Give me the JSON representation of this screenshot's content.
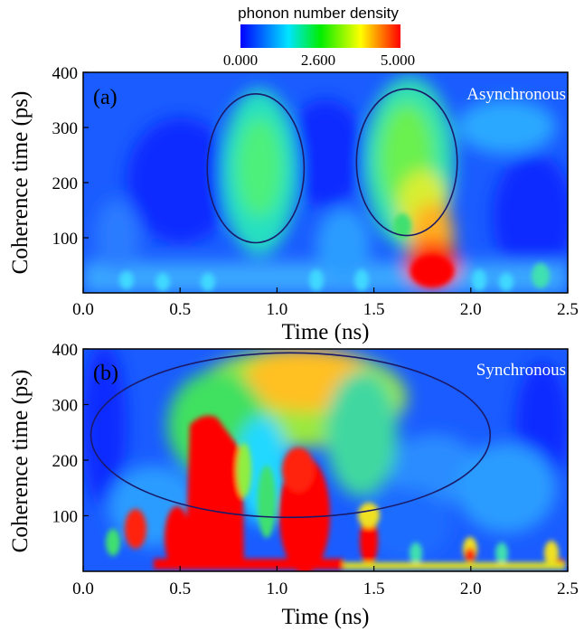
{
  "colorbar": {
    "title": "phonon number density",
    "ticks": [
      "0.000",
      "2.600",
      "5.000"
    ],
    "tick_values": [
      0.0,
      2.6,
      5.0
    ],
    "range": [
      0,
      5
    ],
    "colors": [
      "#0000ff",
      "#00ffff",
      "#00ff00",
      "#ffff00",
      "#ff0000"
    ]
  },
  "chart_data": [
    {
      "type": "heatmap",
      "panel": "(a)",
      "annotation": "Asynchronous",
      "xlabel": "Time (ns)",
      "ylabel": "Coherence time (ps)",
      "xlim": [
        0,
        2.5
      ],
      "ylim": [
        0,
        400
      ],
      "xticks": [
        "0.0",
        "0.5",
        "1.0",
        "1.5",
        "2.0",
        "2.5"
      ],
      "yticks": [
        "100",
        "200",
        "300",
        "400"
      ],
      "regions": [
        {
          "x": 0.9,
          "y": 230,
          "value": 2.6
        },
        {
          "x": 1.65,
          "y": 250,
          "value": 2.6
        },
        {
          "x": 1.75,
          "y": 180,
          "value": 3.8
        },
        {
          "x": 1.8,
          "y": 60,
          "value": 5.0
        }
      ],
      "ellipses": [
        {
          "cx": 0.89,
          "cy": 226,
          "rx": 0.25,
          "ry": 135
        },
        {
          "cx": 1.67,
          "cy": 237,
          "rx": 0.26,
          "ry": 133
        }
      ]
    },
    {
      "type": "heatmap",
      "panel": "(b)",
      "annotation": "Synchronous",
      "xlabel": "Time (ns)",
      "ylabel": "Coherence time (ps)",
      "xlim": [
        0,
        2.5
      ],
      "ylim": [
        0,
        400
      ],
      "xticks": [
        "0.0",
        "0.5",
        "1.0",
        "1.5",
        "2.0",
        "2.5"
      ],
      "yticks": [
        "100",
        "200",
        "300",
        "400"
      ],
      "regions": [
        {
          "x": 0.6,
          "y": 150,
          "value": 5.0
        },
        {
          "x": 1.1,
          "y": 150,
          "value": 5.0
        },
        {
          "x": 1.1,
          "y": 340,
          "value": 3.8
        },
        {
          "x": 1.45,
          "y": 40,
          "value": 5.0
        }
      ],
      "ellipses": [
        {
          "cx": 1.07,
          "cy": 245,
          "rx": 1.03,
          "ry": 148
        }
      ]
    }
  ]
}
